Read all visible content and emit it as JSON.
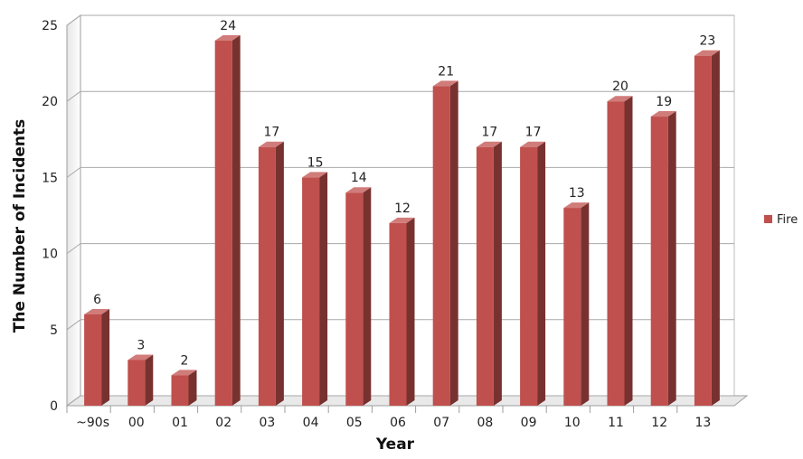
{
  "chart_data": {
    "type": "bar",
    "categories": [
      "~90s",
      "00",
      "01",
      "02",
      "03",
      "04",
      "05",
      "06",
      "07",
      "08",
      "09",
      "10",
      "11",
      "12",
      "13"
    ],
    "series": [
      {
        "name": "Fire",
        "values": [
          6,
          3,
          2,
          24,
          17,
          15,
          14,
          12,
          21,
          17,
          17,
          13,
          20,
          19,
          23
        ],
        "color": "#C0504D"
      }
    ],
    "xlabel": "Year",
    "ylabel": "The Number of Incidents",
    "ylim": [
      0,
      25
    ],
    "yticks": [
      0,
      5,
      10,
      15,
      20,
      25
    ],
    "grid": true,
    "data_labels": true,
    "legend": "right",
    "style": "3d-column"
  }
}
